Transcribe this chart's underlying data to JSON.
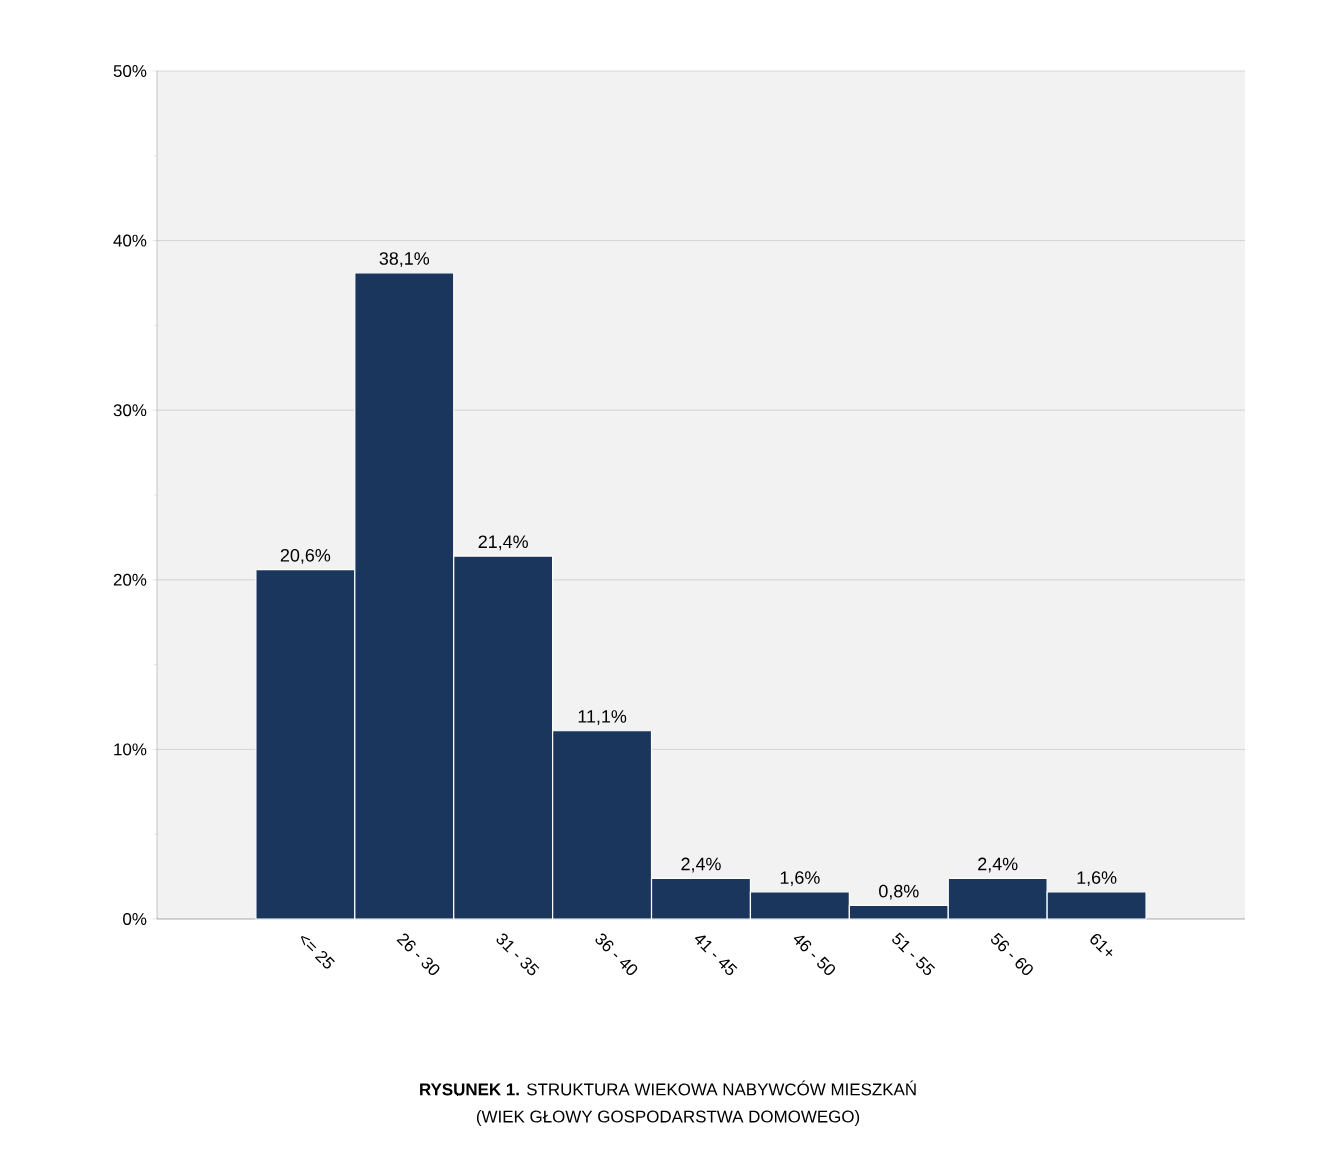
{
  "chart_data": {
    "type": "bar",
    "title": "**RYSUNEK 1.** STRUKTURA WIEKOWA NABYWCÓW MIESZKAŃ",
    "subtitle": "(WIEK GŁOWY GOSPODARSTWA DOMOWEGO)",
    "categories": [
      "<= 25",
      "26 - 30",
      "31 - 35",
      "36 - 40",
      "41 - 45",
      "46 - 50",
      "51 - 55",
      "56 - 60",
      "61+"
    ],
    "values": [
      20.6,
      38.1,
      21.4,
      11.1,
      2.4,
      1.6,
      0.8,
      2.4,
      1.6
    ],
    "value_labels": [
      "20,6%",
      "38,1%",
      "21,4%",
      "11,1%",
      "2,4%",
      "1,6%",
      "0,8%",
      "2,4%",
      "1,6%"
    ],
    "color": "#1b365d",
    "ylim": [
      0,
      50
    ],
    "yticks": [
      {
        "value": 0,
        "label": "0%"
      },
      {
        "value": 10,
        "label": "10%"
      },
      {
        "value": 20,
        "label": "20%"
      },
      {
        "value": 30,
        "label": "30%"
      },
      {
        "value": 40,
        "label": "40%"
      },
      {
        "value": 50,
        "label": "50%"
      }
    ],
    "grid": "y"
  }
}
